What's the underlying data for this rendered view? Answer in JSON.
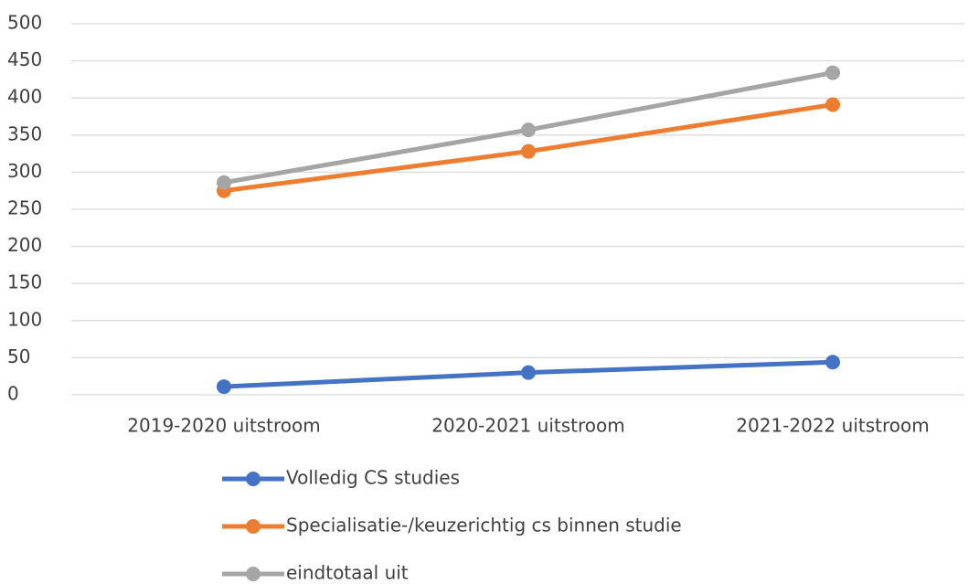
{
  "chart_data": {
    "type": "line",
    "categories": [
      "2019-2020 uitstroom",
      "2020-2021 uitstroom",
      "2021-2022 uitstroom"
    ],
    "series": [
      {
        "name": "Volledig CS studies",
        "color": "#4472c4",
        "values": [
          11,
          30,
          44
        ]
      },
      {
        "name": "Specialisatie-/keuzerichtig cs binnen studie",
        "color": "#ed7d31",
        "values": [
          275,
          328,
          391
        ]
      },
      {
        "name": "eindtotaal uit",
        "color": "#a5a5a5",
        "values": [
          286,
          357,
          434
        ]
      }
    ],
    "ylim": [
      0,
      500
    ],
    "yticks": [
      0,
      50,
      100,
      150,
      200,
      250,
      300,
      350,
      400,
      450,
      500
    ],
    "grid": true,
    "legend": "bottom"
  }
}
